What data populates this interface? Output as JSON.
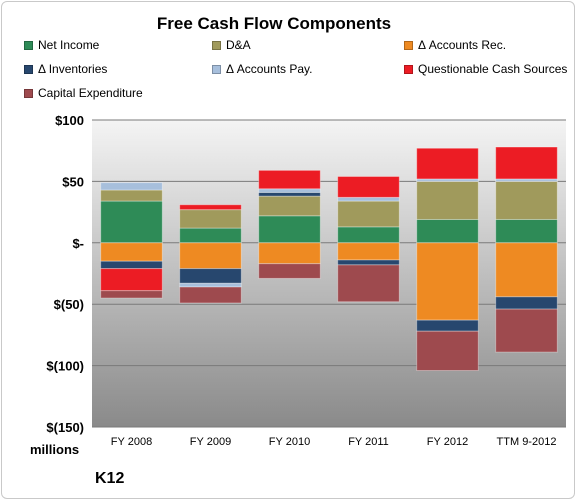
{
  "chart_data": {
    "type": "bar",
    "subtype": "stacked",
    "title": "Free Cash Flow Components",
    "xlabel": "",
    "ylabel": "",
    "units": "millions",
    "company": "K12",
    "categories": [
      "FY 2008",
      "FY 2009",
      "FY 2010",
      "FY 2011",
      "FY 2012",
      "TTM 9-2012"
    ],
    "ylim": [
      -150,
      100
    ],
    "yticks": [
      100,
      50,
      0,
      -50,
      -100,
      -150
    ],
    "ytick_labels": [
      "$100",
      "$50",
      "$-",
      "$(50)",
      "$(100)",
      "$(150)"
    ],
    "grid": true,
    "legend_position": "top",
    "series": [
      {
        "name": "Net Income",
        "color": "#2e8b57",
        "values": [
          34,
          12,
          22,
          13,
          19,
          19
        ]
      },
      {
        "name": "D&A",
        "color": "#a09a5c",
        "values": [
          9,
          15,
          16,
          21,
          31,
          31
        ]
      },
      {
        "name": "Δ Accounts Rec.",
        "color": "#ee8a22",
        "values": [
          -15,
          -21,
          -17,
          -14,
          -63,
          -44
        ]
      },
      {
        "name": "Δ Inventories",
        "color": "#27476e",
        "values": [
          -6,
          -12,
          3,
          -4,
          -9,
          -10
        ]
      },
      {
        "name": "Δ Accounts Pay.",
        "color": "#a7bfdc",
        "values": [
          6,
          -3,
          3,
          3,
          2,
          2
        ]
      },
      {
        "name": "Questionable Cash Sources",
        "color": "#ec1c24",
        "values": [
          -18,
          4,
          15,
          17,
          25,
          26
        ]
      },
      {
        "name": "Capital Expenditure",
        "color": "#9e4a4e",
        "values": [
          -6,
          -13,
          -12,
          -30,
          -32,
          -35
        ]
      }
    ]
  }
}
